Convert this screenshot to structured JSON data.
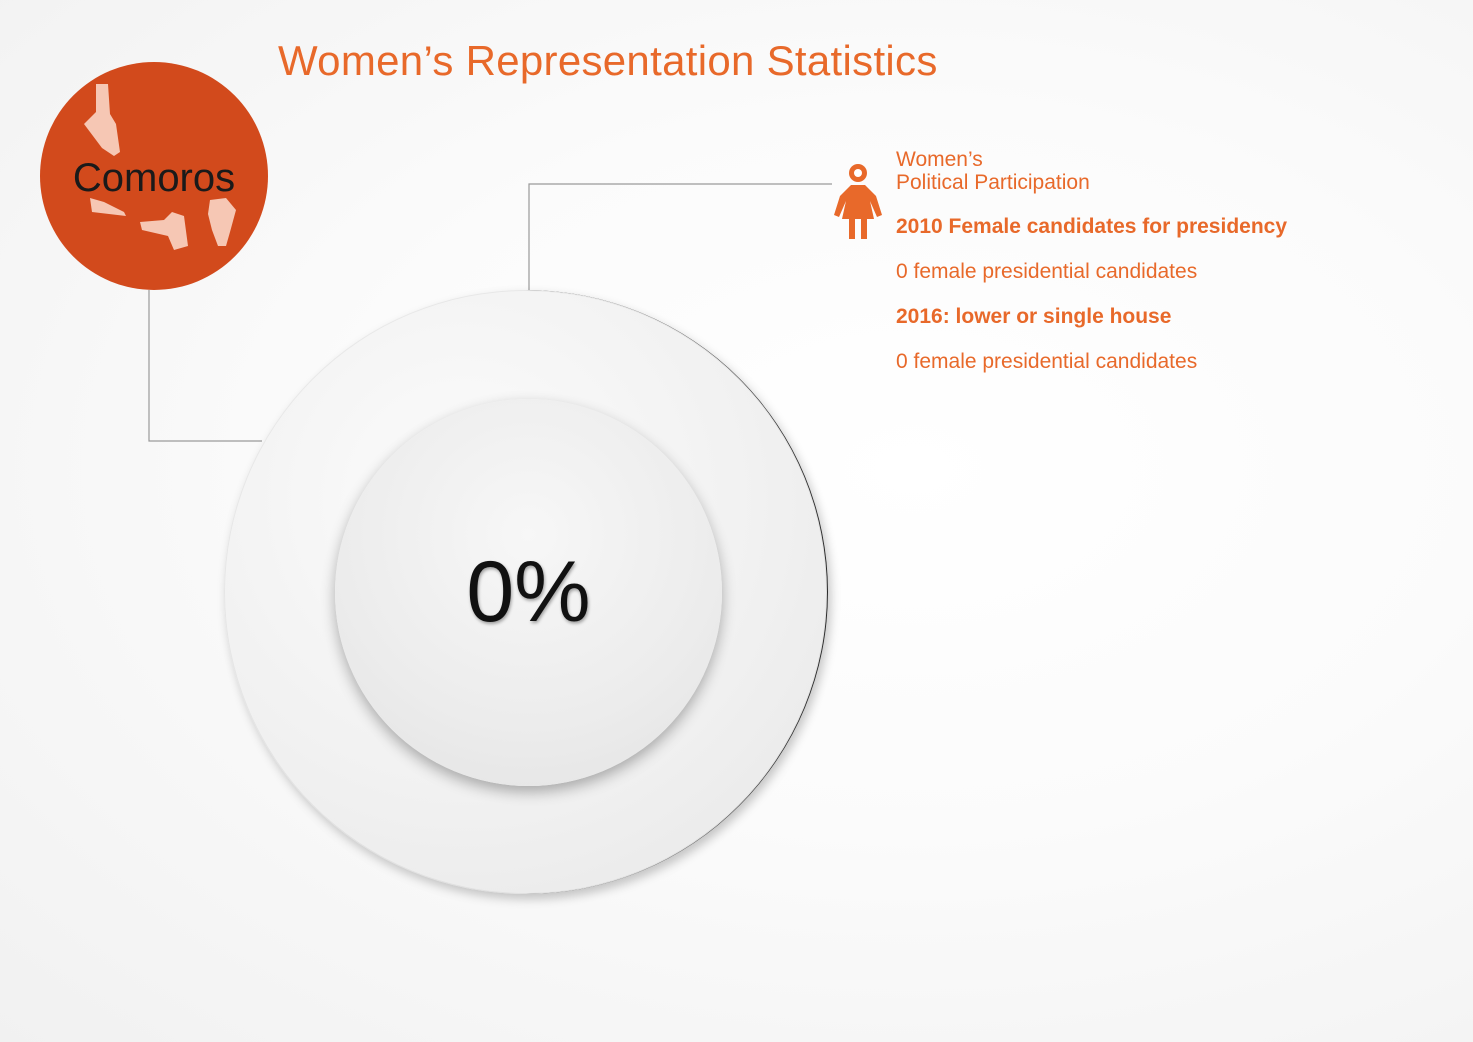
{
  "title": "Women’s Representation Statistics",
  "country": {
    "name": "Comoros",
    "badge_color": "#d24a1c",
    "map_color": "#f6c7b4"
  },
  "stat": {
    "percent": "0%"
  },
  "info": {
    "icon": "woman-icon",
    "heading_line1": "Women’s",
    "heading_line2": "Political Participation",
    "section1_title": "2010 Female candidates for presidency",
    "section1_value": "0 female presidential candidates",
    "section2_title": "2016: lower or single house",
    "section2_value": "0 female presidential candidates"
  },
  "colors": {
    "accent": "#e8692a",
    "text_dark": "#111111",
    "connector": "#9a9a9a"
  }
}
